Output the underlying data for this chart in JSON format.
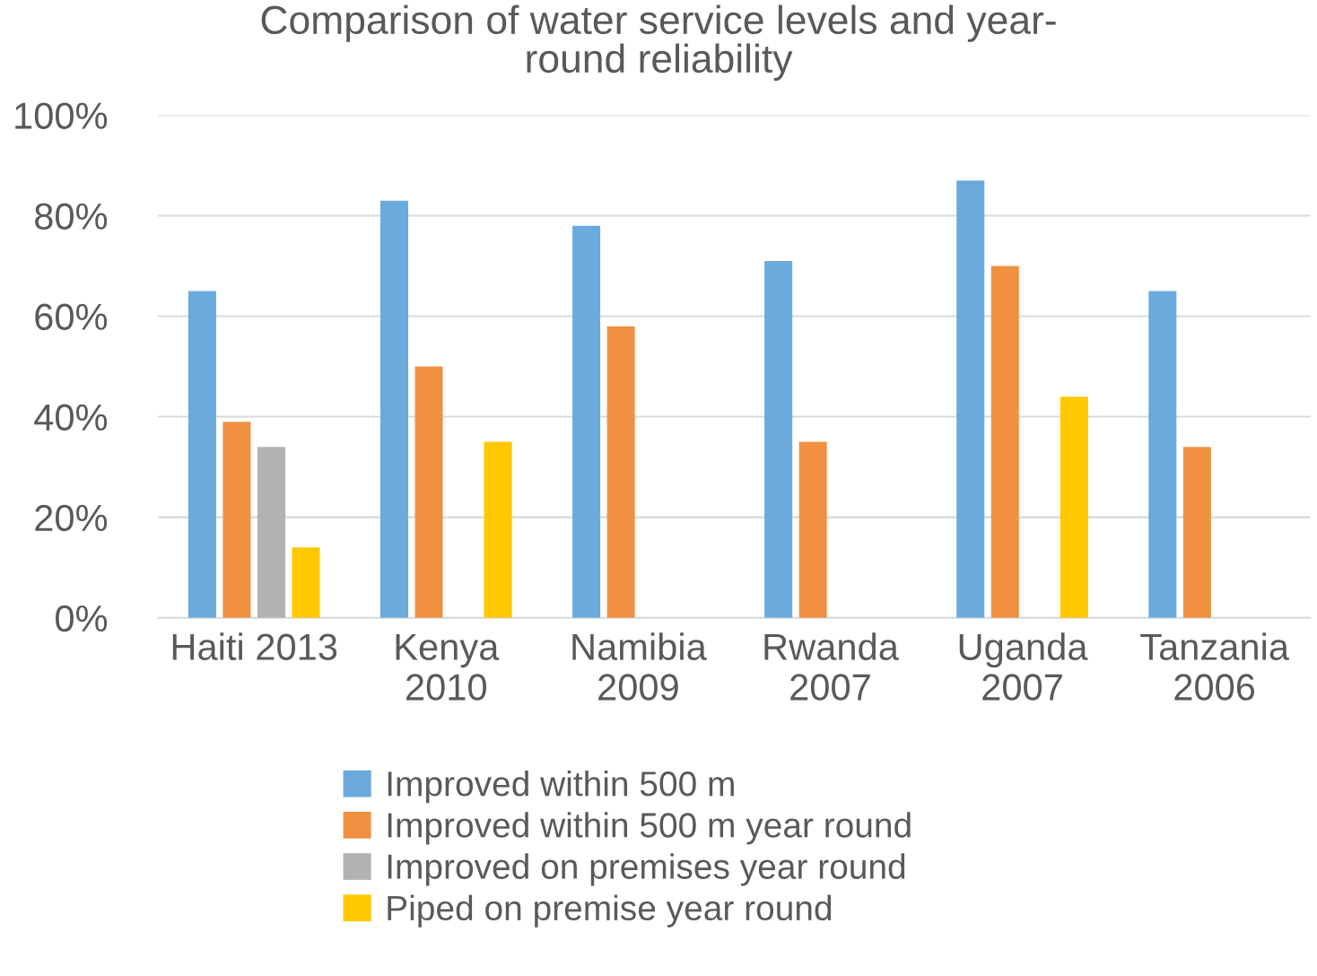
{
  "chart_data": {
    "type": "bar",
    "title": "Comparison of water service levels and year-\nround reliability",
    "categories": [
      "Haiti 2013",
      "Kenya\n2010",
      "Namibia\n2009",
      "Rwanda\n2007",
      "Uganda\n2007",
      "Tanzania\n2006"
    ],
    "series": [
      {
        "name": "Improved within 500 m",
        "color": "#6aaadc",
        "values": [
          65,
          83,
          78,
          71,
          87,
          65
        ]
      },
      {
        "name": "Improved within 500 m year round",
        "color": "#f09142",
        "values": [
          39,
          50,
          58,
          35,
          70,
          34
        ]
      },
      {
        "name": "Improved on premises year round",
        "color": "#b2b2b2",
        "values": [
          34,
          null,
          null,
          null,
          null,
          null
        ]
      },
      {
        "name": "Piped on premise year round",
        "color": "#ffc800",
        "values": [
          14,
          35,
          null,
          null,
          44,
          null
        ]
      }
    ],
    "ylim": [
      0,
      100
    ],
    "yticks": [
      {
        "value": 0,
        "label": "0%"
      },
      {
        "value": 20,
        "label": "20%"
      },
      {
        "value": 40,
        "label": "40%"
      },
      {
        "value": 60,
        "label": "60%"
      },
      {
        "value": 80,
        "label": "80%"
      },
      {
        "value": 100,
        "label": "100%"
      }
    ],
    "grid": "y",
    "legend": "bottom"
  }
}
